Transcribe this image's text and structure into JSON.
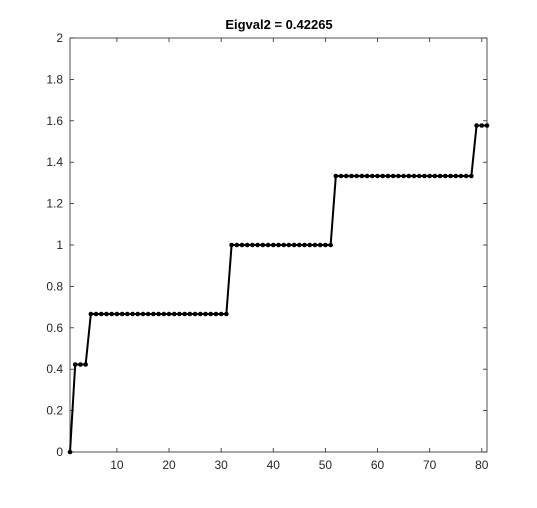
{
  "chart_data": {
    "type": "line",
    "title": "Eigval2 = 0.42265",
    "xlabel": "",
    "ylabel": "",
    "xlim": [
      1,
      81
    ],
    "ylim": [
      0,
      2
    ],
    "xticks": [
      10,
      20,
      30,
      40,
      50,
      60,
      70,
      80
    ],
    "yticks": [
      0,
      0.2,
      0.4,
      0.6,
      0.8,
      1,
      1.2,
      1.4,
      1.6,
      1.8,
      2
    ],
    "ytick_labels": [
      "0",
      "0.2",
      "0.4",
      "0.6",
      "0.8",
      "1",
      "1.2",
      "1.4",
      "1.6",
      "1.8",
      "2"
    ],
    "grid": false,
    "legend": "none",
    "line_color": "#000000",
    "marker": "filled-circle",
    "series": [
      {
        "segments": [
          {
            "x_start": 1,
            "x_end": 1,
            "y": 0
          },
          {
            "x_start": 2,
            "x_end": 4,
            "y": 0.42265
          },
          {
            "x_start": 5,
            "x_end": 31,
            "y": 0.66667
          },
          {
            "x_start": 32,
            "x_end": 51,
            "y": 1
          },
          {
            "x_start": 52,
            "x_end": 78,
            "y": 1.33333
          },
          {
            "x_start": 79,
            "x_end": 81,
            "y": 1.57735
          }
        ]
      }
    ]
  }
}
